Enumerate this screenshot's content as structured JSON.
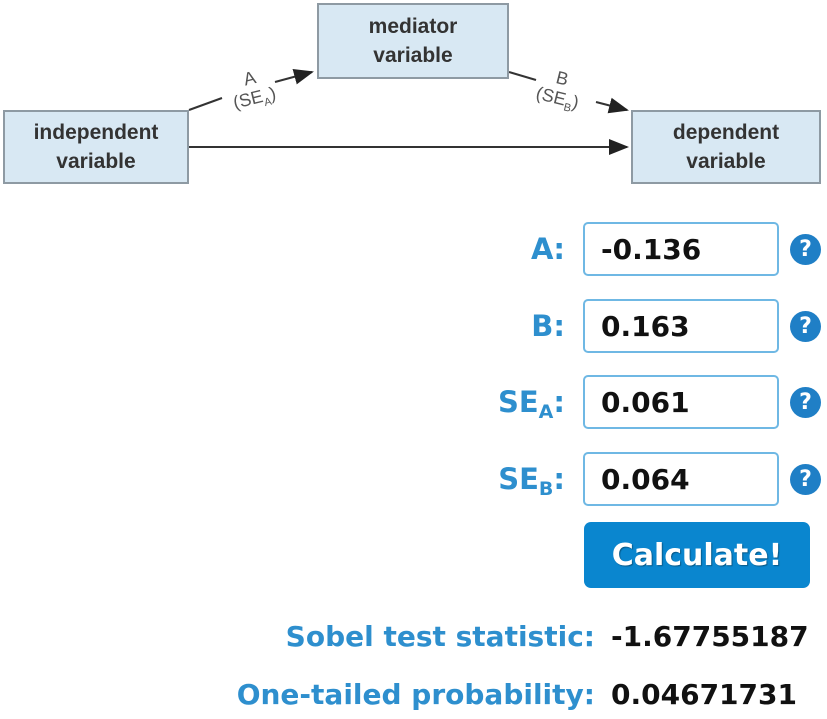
{
  "diagram": {
    "mediator": [
      "mediator",
      "variable"
    ],
    "independent": [
      "independent",
      "variable"
    ],
    "dependent": [
      "dependent",
      "variable"
    ],
    "path_a": {
      "label": "A",
      "se": "(SE",
      "se_sub": "A",
      "se_close": ")"
    },
    "path_b": {
      "label": "B",
      "se": "(SE",
      "se_sub": "B",
      "se_close": ")"
    },
    "box_color": "#d8e8f3"
  },
  "form": {
    "fields": [
      {
        "label": "A",
        "sub": "",
        "colon": ":",
        "value": "-0.136"
      },
      {
        "label": "B",
        "sub": "",
        "colon": ":",
        "value": "0.163"
      },
      {
        "label": "SE",
        "sub": "A",
        "colon": ":",
        "value": "0.061"
      },
      {
        "label": "SE",
        "sub": "B",
        "colon": ":",
        "value": "0.064"
      }
    ],
    "help_glyph": "?",
    "help_icon": "question-circle-icon",
    "calculate_label": "Calculate!",
    "accent_color": "#2e8fce",
    "button_color": "#0a86cf"
  },
  "results": {
    "statistic_label": "Sobel test statistic:",
    "statistic_value": "-1.67755187",
    "probability_label": "One-tailed probability:",
    "probability_value": "0.04671731"
  }
}
